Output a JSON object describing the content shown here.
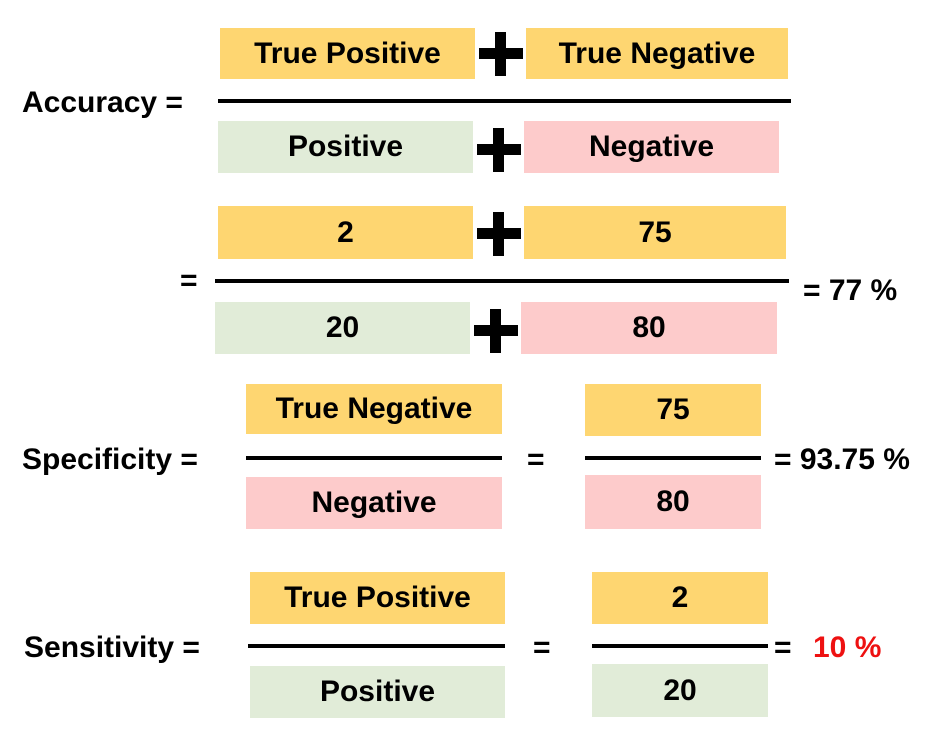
{
  "colors": {
    "true_fill": "#fed671",
    "positive_fill": "#e1ecd8",
    "negative_fill": "#fdcbcb",
    "highlight_red": "#ee1111"
  },
  "accuracy": {
    "label": "Accuracy =",
    "num_left": "True Positive",
    "num_right": "True Negative",
    "den_left": "Positive",
    "den_right": "Negative",
    "eq": "=",
    "num_left_value": "2",
    "num_right_value": "75",
    "den_left_value": "20",
    "den_right_value": "80",
    "result": "=  77 %"
  },
  "specificity": {
    "label": "Specificity =",
    "num": "True Negative",
    "den": "Negative",
    "eq": "=",
    "num_value": "75",
    "den_value": "80",
    "result": "=  93.75 %"
  },
  "sensitivity": {
    "label": "Sensitivity =",
    "num": "True Positive",
    "den": "Positive",
    "eq": "=",
    "num_value": "2",
    "den_value": "20",
    "result_prefix": "=",
    "result_value": "10 %"
  }
}
